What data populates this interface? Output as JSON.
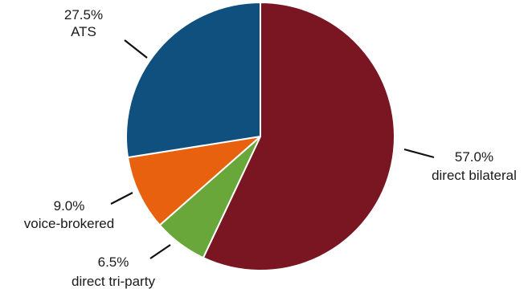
{
  "chart_data": {
    "type": "pie",
    "title": "",
    "start_angle_deg": 0,
    "direction": "clockwise",
    "slices": [
      {
        "label": "direct bilateral",
        "value": 57.0,
        "value_label": "57.0%",
        "color": "#7a1522"
      },
      {
        "label": "direct tri-party",
        "value": 6.5,
        "value_label": "6.5%",
        "color": "#6aa73a"
      },
      {
        "label": "voice-brokered",
        "value": 9.0,
        "value_label": "9.0%",
        "color": "#e8610f"
      },
      {
        "label": "ATS",
        "value": 27.5,
        "value_label": "27.5%",
        "color": "#10507f"
      }
    ]
  }
}
